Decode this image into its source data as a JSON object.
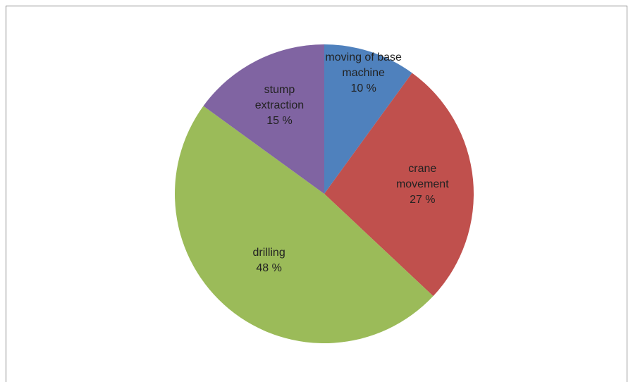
{
  "chart_data": {
    "type": "pie",
    "categories": [
      "moving of base machine",
      "crane movement",
      "drilling",
      "stump extraction"
    ],
    "values": [
      10,
      27,
      48,
      15
    ],
    "value_labels": [
      "10 %",
      "27 %",
      "48 %",
      "15 %"
    ],
    "colors": [
      "#4f81bd",
      "#c0504d",
      "#9bbb59",
      "#8064a2"
    ]
  }
}
